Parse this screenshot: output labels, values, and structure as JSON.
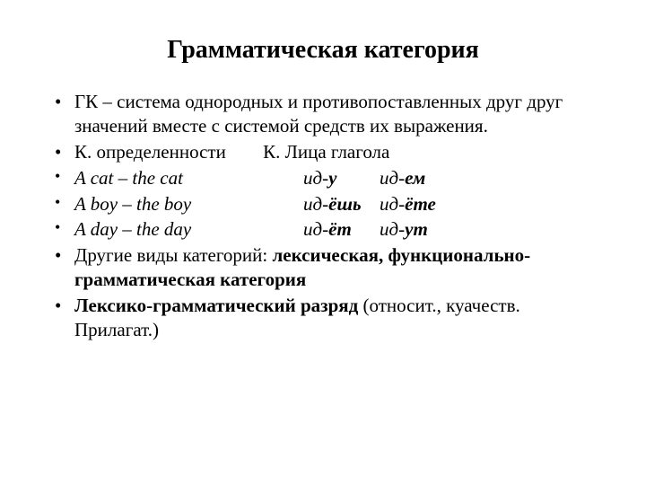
{
  "title": "Грамматическая категория",
  "bullets": {
    "b1": "ГК – система однородных и противопоставленных друг друг значений вместе с системой средств их выражения.",
    "b2_left": "К. определенности",
    "b2_right": "К.  Лица глагола",
    "examples": [
      {
        "left": "A cat –  the cat",
        "m1p": " ид-",
        "m1b": "у",
        "m2p": "ид-",
        "m2b": "ем"
      },
      {
        "left": "A boy – the boy",
        "m1p": "ид-",
        "m1b": "ёшь",
        "m2p": "ид-",
        "m2b": "ёте"
      },
      {
        "left": "A day – the day",
        "m1p": "ид-",
        "m1b": "ёт",
        "m2p": "ид-",
        "m2b": "ут"
      }
    ],
    "b6a": "Другие виды категорий: ",
    "b6b": "лексическая, функционально-грамматическая категория",
    "b7a": "Лексико-грамматический разряд",
    "b7b": " (относит., куачеств. Прилагат.)"
  },
  "style": {
    "background": "#ffffff",
    "text_color": "#000000",
    "title_fontsize": 28,
    "body_fontsize": 21,
    "small_fontsize": 18,
    "font_family": "Times New Roman"
  }
}
